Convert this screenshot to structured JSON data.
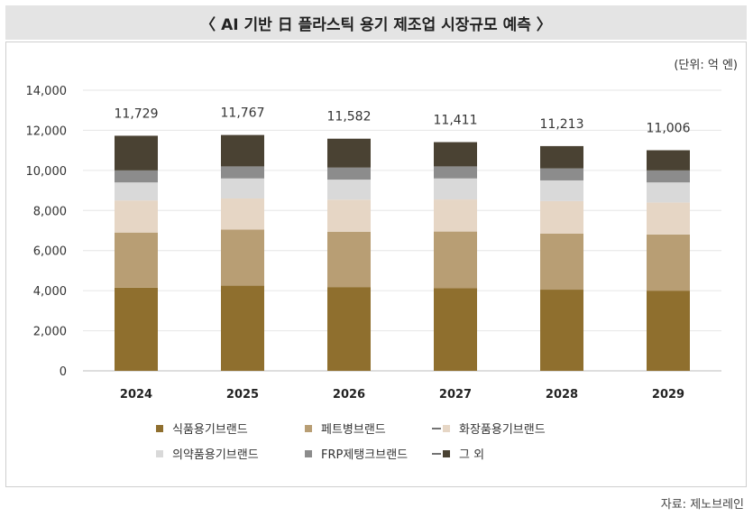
{
  "title": "〈 AI 기반 日 플라스틱 용기 제조업 시장규모 예측 〉",
  "unit": "(단위: 억 엔)",
  "source": "자료: 제노브레인",
  "chart_data": {
    "type": "bar",
    "stacked": true,
    "categories": [
      "2024",
      "2025",
      "2026",
      "2027",
      "2028",
      "2029"
    ],
    "totals": [
      "11,729",
      "11,767",
      "11,582",
      "11,411",
      "11,213",
      "11,006"
    ],
    "total_values": [
      11729,
      11767,
      11582,
      11411,
      11213,
      11006
    ],
    "ylim": [
      0,
      14000
    ],
    "yticks": [
      0,
      2000,
      4000,
      6000,
      8000,
      10000,
      12000,
      14000
    ],
    "ytick_labels": [
      "0",
      "2,000",
      "4,000",
      "6,000",
      "8,000",
      "10,000",
      "12,000",
      "14,000"
    ],
    "grid": true,
    "legend_position": "bottom",
    "series": [
      {
        "name": "식품용기브랜드",
        "color": "#8f6f2e",
        "marker": "■",
        "values": [
          4150,
          4250,
          4180,
          4120,
          4050,
          4000
        ]
      },
      {
        "name": "페트병브랜드",
        "color": "#b89e74",
        "marker": "■",
        "values": [
          2750,
          2800,
          2760,
          2830,
          2800,
          2800
        ]
      },
      {
        "name": "화장품용기브랜드",
        "color": "#e6d6c5",
        "marker": "━ ■",
        "values": [
          1600,
          1550,
          1600,
          1600,
          1620,
          1600
        ]
      },
      {
        "name": "의약품용기브랜드",
        "color": "#d9d9d9",
        "marker": "■",
        "values": [
          900,
          1000,
          1000,
          1050,
          1030,
          1000
        ]
      },
      {
        "name": "FRP제탱크브랜드",
        "color": "#8c8c8c",
        "marker": "■",
        "values": [
          600,
          600,
          600,
          600,
          600,
          600
        ]
      },
      {
        "name": "그 외",
        "color": "#4a4233",
        "marker": "━ ■",
        "values": [
          1729,
          1567,
          1442,
          1211,
          1113,
          1006
        ]
      }
    ]
  }
}
